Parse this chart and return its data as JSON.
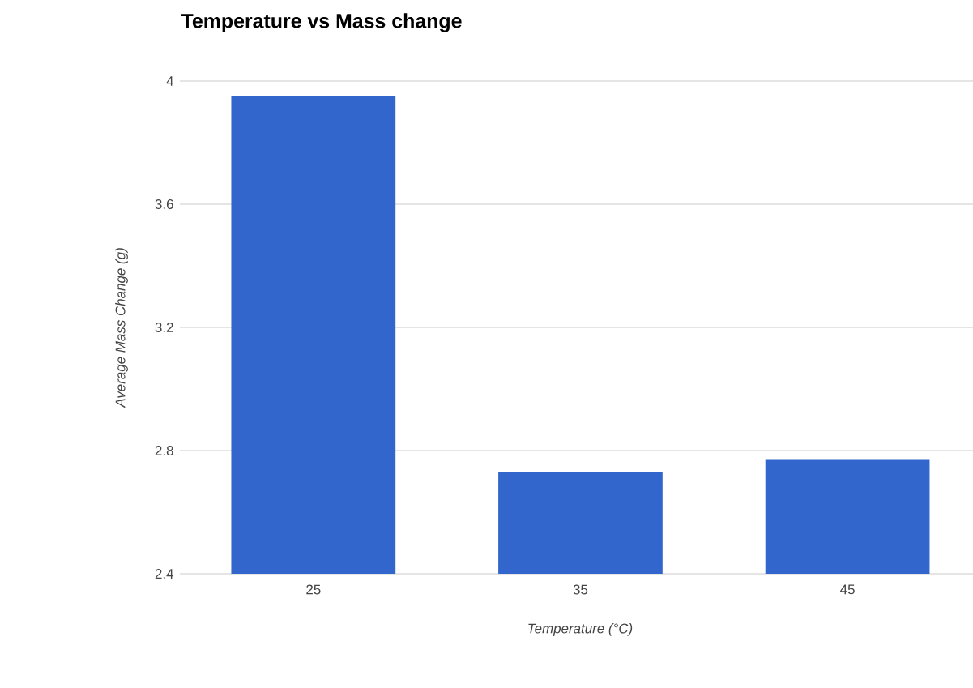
{
  "chart_data": {
    "type": "bar",
    "title": "Temperature vs Mass change",
    "xlabel": "Temperature (°C)",
    "ylabel": "Average Mass Change (g)",
    "categories": [
      "25",
      "35",
      "45"
    ],
    "values": [
      3.95,
      2.73,
      2.77
    ],
    "color": "#3366cc",
    "ylim": [
      2.4,
      4
    ],
    "yticks": [
      2.4,
      2.8,
      3.2,
      3.6,
      4
    ],
    "grid": "y"
  }
}
